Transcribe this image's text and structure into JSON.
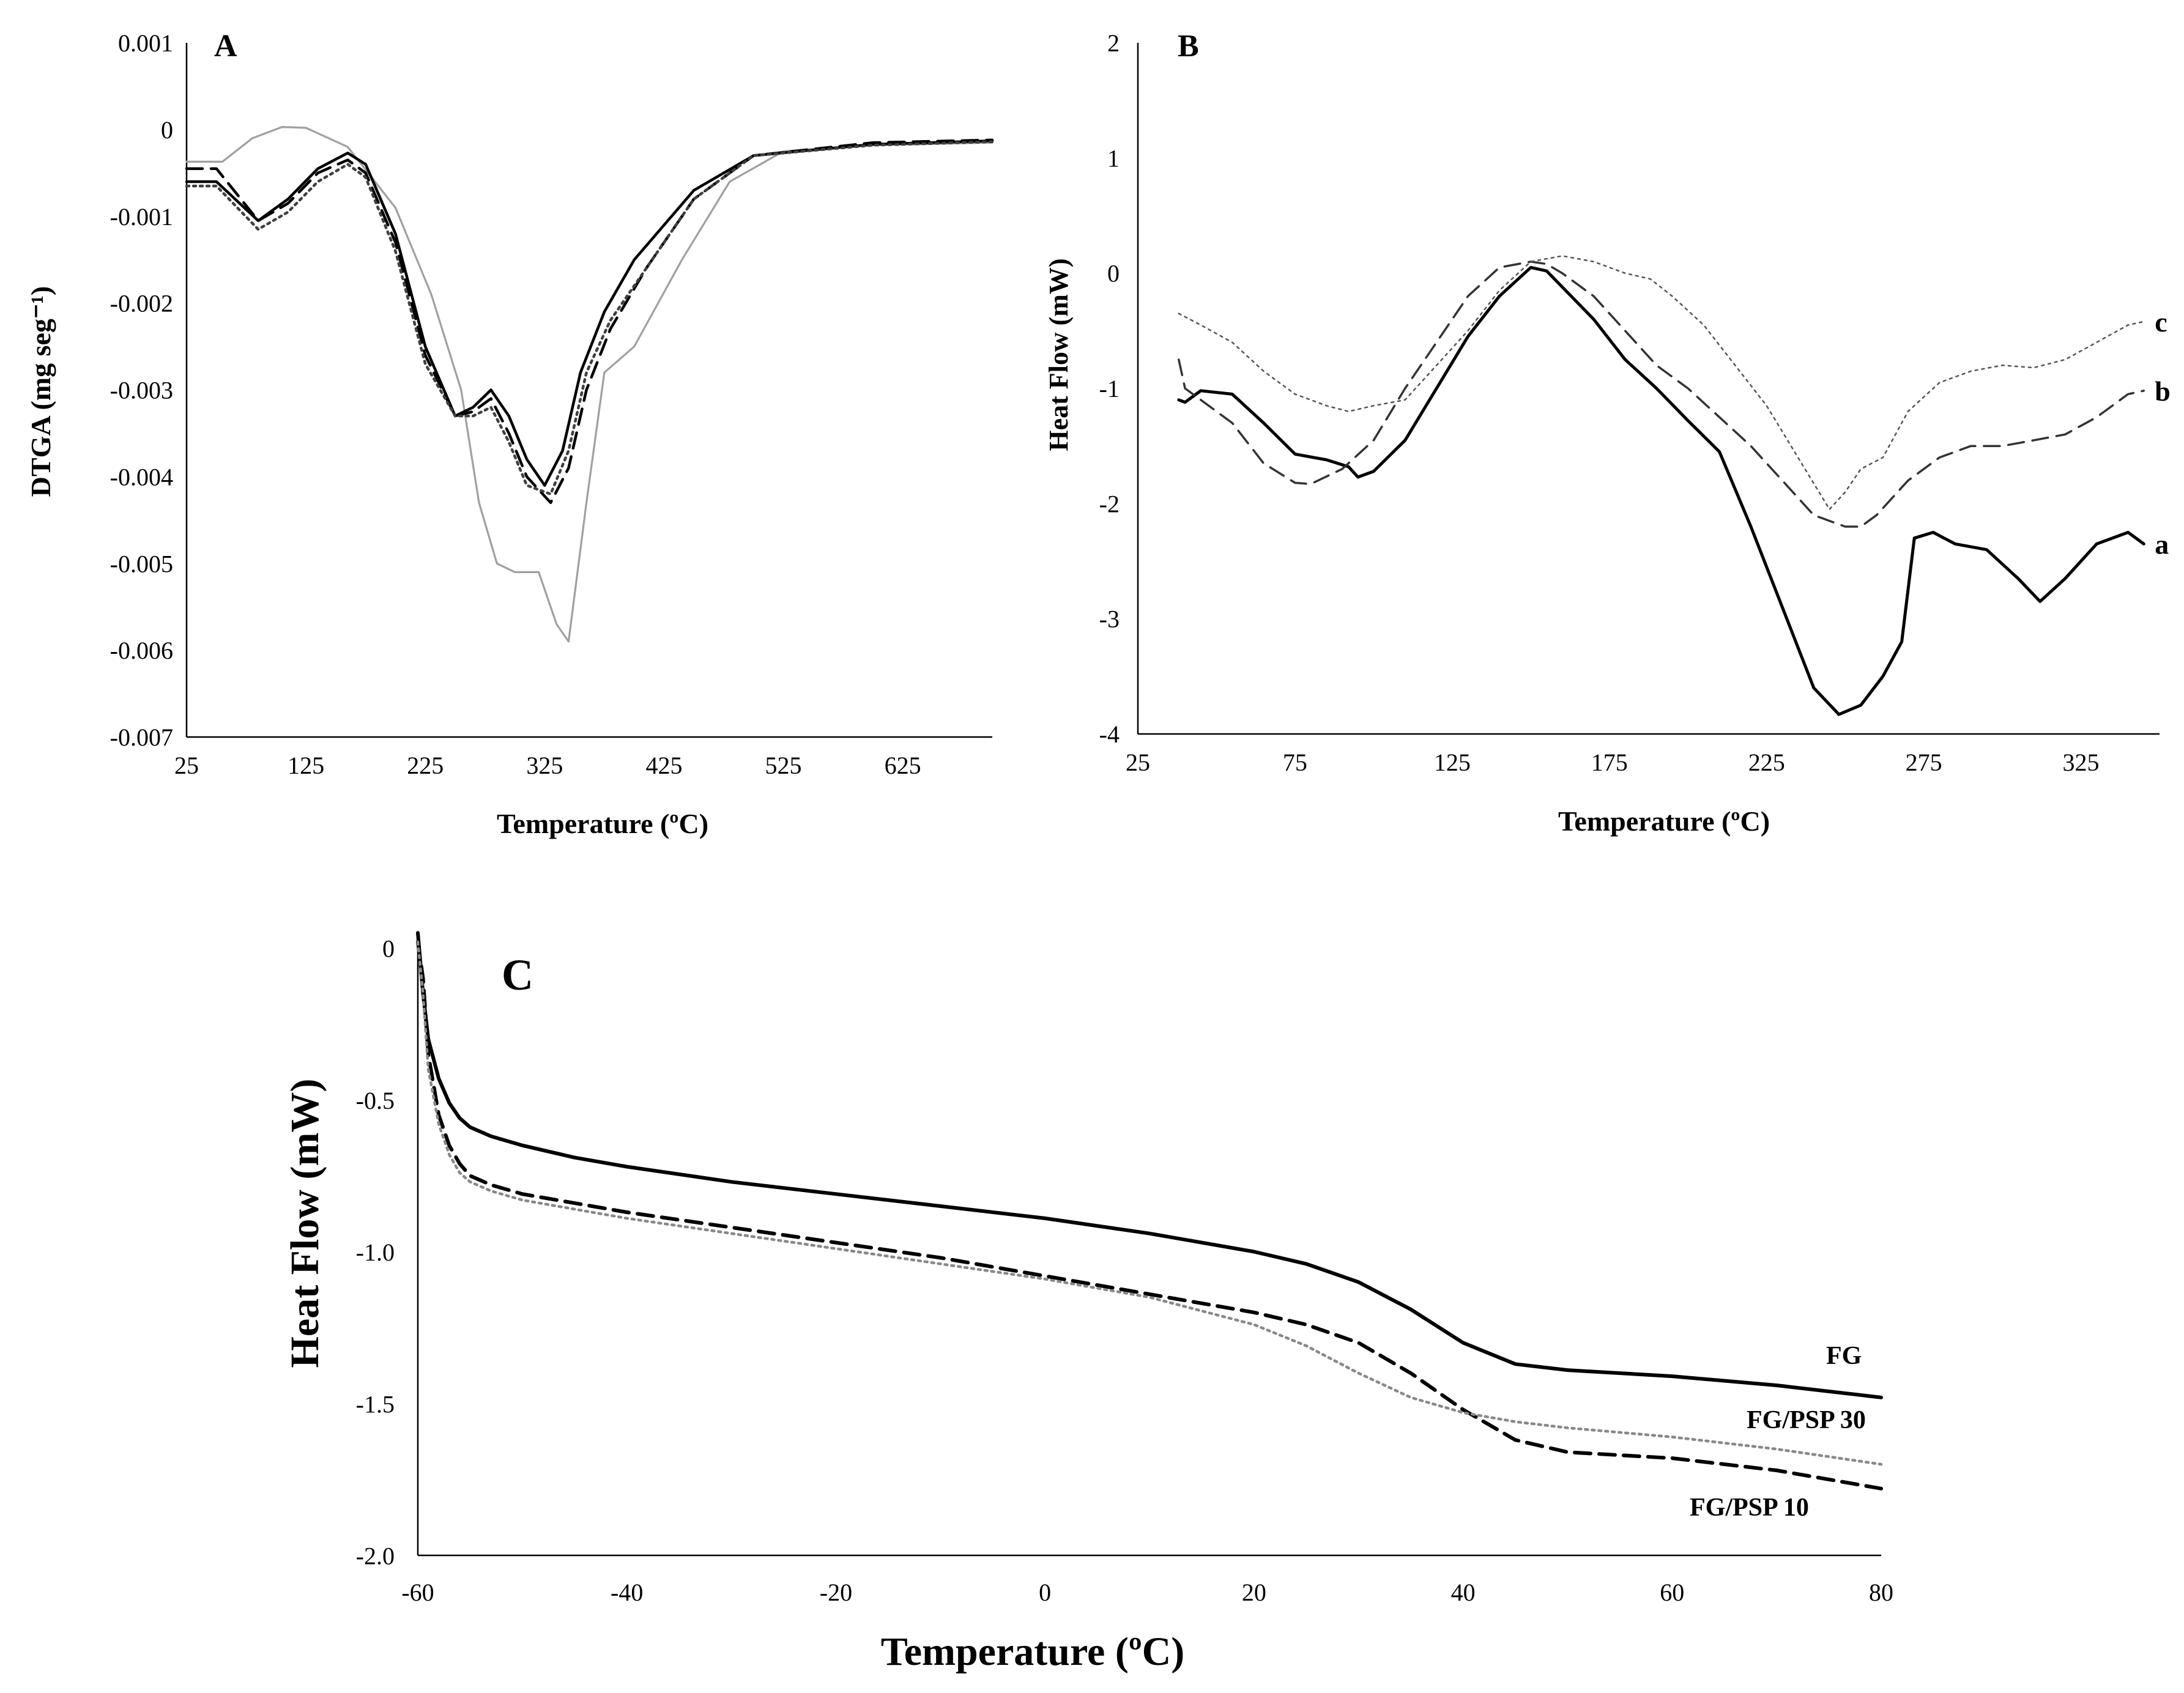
{
  "chart_data": [
    {
      "panel": "A",
      "type": "line",
      "xlabel": "Temperature (ºC)",
      "ylabel": "DTGA (mg seg⁻¹)",
      "xlim": [
        25,
        700
      ],
      "ylim": [
        -0.007,
        0.001
      ],
      "x_ticks": [
        25,
        125,
        225,
        325,
        425,
        525,
        625
      ],
      "x_tick_labels": [
        "25",
        "125",
        "225",
        "325",
        "425",
        "525",
        "625"
      ],
      "y_ticks": [
        0.001,
        0,
        -0.001,
        -0.002,
        -0.003,
        -0.004,
        -0.005,
        -0.006,
        -0.007
      ],
      "y_tick_labels": [
        "0.001",
        "0",
        "-0.001",
        "-0.002",
        "-0.003",
        "-0.004",
        "-0.005",
        "-0.006",
        "-0.007"
      ],
      "series": [
        {
          "name": "grey solid",
          "color": "#a0a0a0",
          "style": "solid",
          "x": [
            25,
            55,
            80,
            105,
            125,
            160,
            200,
            230,
            255,
            270,
            285,
            300,
            320,
            335,
            345,
            360,
            375,
            400,
            440,
            480,
            525,
            600,
            700
          ],
          "y": [
            -0.00037,
            -0.00037,
            -0.0001,
            3e-05,
            2e-05,
            -0.0002,
            -0.0009,
            -0.0019,
            -0.003,
            -0.0043,
            -0.005,
            -0.0051,
            -0.0051,
            -0.0057,
            -0.0059,
            -0.0043,
            -0.0028,
            -0.0025,
            -0.0015,
            -0.0006,
            -0.00025,
            -0.00018,
            -0.00015
          ]
        },
        {
          "name": "black solid",
          "color": "#000000",
          "style": "solid",
          "x": [
            25,
            50,
            85,
            110,
            135,
            160,
            175,
            200,
            225,
            250,
            265,
            280,
            295,
            310,
            325,
            340,
            355,
            375,
            400,
            450,
            500,
            600,
            700
          ],
          "y": [
            -0.0006,
            -0.0006,
            -0.00105,
            -0.0008,
            -0.00045,
            -0.00027,
            -0.0004,
            -0.0012,
            -0.0025,
            -0.0033,
            -0.0032,
            -0.003,
            -0.0033,
            -0.0038,
            -0.0041,
            -0.0037,
            -0.0028,
            -0.0021,
            -0.0015,
            -0.0007,
            -0.0003,
            -0.00017,
            -0.00013
          ]
        },
        {
          "name": "black dashed",
          "color": "#000000",
          "style": "dashed",
          "x": [
            25,
            50,
            85,
            110,
            135,
            160,
            175,
            200,
            225,
            250,
            265,
            280,
            295,
            310,
            330,
            345,
            360,
            380,
            410,
            450,
            500,
            600,
            700
          ],
          "y": [
            -0.00045,
            -0.00045,
            -0.00105,
            -0.00085,
            -0.0005,
            -0.00035,
            -0.0005,
            -0.0013,
            -0.0026,
            -0.0033,
            -0.00325,
            -0.0031,
            -0.0035,
            -0.004,
            -0.0043,
            -0.0039,
            -0.003,
            -0.0023,
            -0.0016,
            -0.0008,
            -0.0003,
            -0.00015,
            -0.00012
          ]
        },
        {
          "name": "black dotted",
          "color": "#404040",
          "style": "dotted",
          "x": [
            25,
            50,
            85,
            110,
            135,
            160,
            175,
            200,
            225,
            250,
            265,
            280,
            295,
            310,
            330,
            345,
            360,
            380,
            410,
            450,
            500,
            600,
            700
          ],
          "y": [
            -0.00065,
            -0.00065,
            -0.00115,
            -0.00095,
            -0.0006,
            -0.0004,
            -0.00055,
            -0.0014,
            -0.0027,
            -0.0033,
            -0.0033,
            -0.0032,
            -0.0036,
            -0.0041,
            -0.0042,
            -0.0037,
            -0.0028,
            -0.0022,
            -0.0016,
            -0.0008,
            -0.0003,
            -0.00018,
            -0.00014
          ]
        }
      ]
    },
    {
      "panel": "B",
      "type": "line",
      "xlabel": "Temperature (ºC)",
      "ylabel": "Heat Flow (mW)",
      "xlim": [
        25,
        350
      ],
      "ylim": [
        -4,
        2
      ],
      "x_ticks": [
        25,
        75,
        125,
        175,
        225,
        275,
        325
      ],
      "x_tick_labels": [
        "25",
        "75",
        "125",
        "175",
        "225",
        "275",
        "325"
      ],
      "y_ticks": [
        2,
        1,
        0,
        -1,
        -2,
        -3,
        -4
      ],
      "y_tick_labels": [
        "2",
        "1",
        "0",
        "-1",
        "-2",
        "-3",
        "-4"
      ],
      "series": [
        {
          "name": "a",
          "label": "a",
          "color": "#000000",
          "style": "solid",
          "x": [
            38,
            40,
            45,
            55,
            65,
            75,
            85,
            92,
            95,
            100,
            110,
            120,
            130,
            140,
            150,
            155,
            160,
            170,
            180,
            190,
            200,
            210,
            220,
            230,
            240,
            248,
            255,
            262,
            268,
            272,
            278,
            285,
            295,
            305,
            312,
            320,
            330,
            340,
            345
          ],
          "y": [
            -1.1,
            -1.12,
            -1.02,
            -1.05,
            -1.3,
            -1.57,
            -1.62,
            -1.68,
            -1.77,
            -1.72,
            -1.45,
            -1.0,
            -0.55,
            -0.2,
            0.05,
            0.02,
            -0.12,
            -0.4,
            -0.75,
            -1.0,
            -1.28,
            -1.55,
            -2.2,
            -2.9,
            -3.6,
            -3.83,
            -3.75,
            -3.5,
            -3.2,
            -2.3,
            -2.25,
            -2.35,
            -2.4,
            -2.65,
            -2.85,
            -2.65,
            -2.35,
            -2.25,
            -2.35
          ]
        },
        {
          "name": "b",
          "label": "b",
          "color": "#333333",
          "style": "dashed",
          "x": [
            38,
            40,
            45,
            55,
            65,
            75,
            80,
            90,
            100,
            110,
            120,
            130,
            140,
            150,
            155,
            160,
            170,
            180,
            190,
            200,
            210,
            220,
            230,
            240,
            250,
            255,
            260,
            270,
            280,
            290,
            300,
            310,
            320,
            330,
            340,
            345
          ],
          "y": [
            -0.75,
            -1.0,
            -1.1,
            -1.3,
            -1.65,
            -1.82,
            -1.83,
            -1.7,
            -1.45,
            -1.0,
            -0.6,
            -0.2,
            0.05,
            0.1,
            0.08,
            0.0,
            -0.2,
            -0.5,
            -0.8,
            -1.0,
            -1.25,
            -1.5,
            -1.8,
            -2.1,
            -2.2,
            -2.2,
            -2.1,
            -1.8,
            -1.6,
            -1.5,
            -1.5,
            -1.45,
            -1.4,
            -1.25,
            -1.05,
            -1.02
          ]
        },
        {
          "name": "c",
          "label": "c",
          "color": "#555555",
          "style": "dotted",
          "x": [
            38,
            45,
            55,
            65,
            75,
            85,
            92,
            100,
            110,
            120,
            130,
            140,
            150,
            160,
            170,
            180,
            188,
            195,
            205,
            215,
            225,
            235,
            245,
            250,
            255,
            262,
            270,
            280,
            290,
            300,
            310,
            320,
            330,
            340,
            345
          ],
          "y": [
            -0.35,
            -0.45,
            -0.6,
            -0.85,
            -1.05,
            -1.15,
            -1.2,
            -1.15,
            -1.1,
            -0.8,
            -0.5,
            -0.15,
            0.1,
            0.15,
            0.1,
            0.0,
            -0.05,
            -0.2,
            -0.45,
            -0.8,
            -1.15,
            -1.6,
            -2.05,
            -1.9,
            -1.7,
            -1.6,
            -1.2,
            -0.95,
            -0.85,
            -0.8,
            -0.82,
            -0.75,
            -0.6,
            -0.45,
            -0.42
          ]
        }
      ]
    },
    {
      "panel": "C",
      "type": "line",
      "xlabel": "Temperature (ºC)",
      "ylabel": "Heat Flow (mW)",
      "xlim": [
        -60,
        80
      ],
      "ylim": [
        -2.0,
        0
      ],
      "x_ticks": [
        -60,
        -40,
        -20,
        0,
        20,
        40,
        60,
        80
      ],
      "x_tick_labels": [
        "-60",
        "-40",
        "-20",
        "0",
        "20",
        "40",
        "60",
        "80"
      ],
      "y_ticks": [
        0,
        -0.5,
        -1.0,
        -1.5,
        -2.0
      ],
      "y_tick_labels": [
        "0",
        "-0.5",
        "-1.0",
        "-1.5",
        "-2.0"
      ],
      "series": [
        {
          "name": "FG",
          "label": "FG",
          "color": "#000000",
          "style": "solid",
          "x": [
            -60,
            -59.5,
            -59,
            -58,
            -57,
            -56,
            -55,
            -53,
            -50,
            -45,
            -40,
            -30,
            -20,
            -10,
            0,
            10,
            20,
            25,
            30,
            35,
            40,
            45,
            50,
            60,
            70,
            80
          ],
          "y": [
            0.05,
            -0.15,
            -0.3,
            -0.43,
            -0.51,
            -0.56,
            -0.59,
            -0.62,
            -0.65,
            -0.69,
            -0.72,
            -0.77,
            -0.81,
            -0.85,
            -0.89,
            -0.94,
            -1.0,
            -1.04,
            -1.1,
            -1.19,
            -1.3,
            -1.37,
            -1.39,
            -1.41,
            -1.44,
            -1.48
          ]
        },
        {
          "name": "FG/PSP 10",
          "label": "FG/PSP 10",
          "color": "#000000",
          "style": "dashed",
          "x": [
            -60,
            -59.5,
            -59,
            -58,
            -57,
            -56,
            -55,
            -53,
            -50,
            -45,
            -40,
            -30,
            -20,
            -10,
            0,
            10,
            20,
            25,
            30,
            35,
            40,
            45,
            50,
            60,
            70,
            80
          ],
          "y": [
            0.02,
            -0.1,
            -0.35,
            -0.55,
            -0.65,
            -0.71,
            -0.75,
            -0.78,
            -0.81,
            -0.84,
            -0.87,
            -0.92,
            -0.97,
            -1.02,
            -1.08,
            -1.14,
            -1.2,
            -1.24,
            -1.3,
            -1.4,
            -1.52,
            -1.62,
            -1.66,
            -1.68,
            -1.72,
            -1.78
          ]
        },
        {
          "name": "FG/PSP 30",
          "label": "FG/PSP 30",
          "color": "#888888",
          "style": "dotted",
          "x": [
            -60,
            -59.5,
            -59,
            -58,
            -57,
            -56,
            -55,
            -53,
            -50,
            -45,
            -40,
            -30,
            -20,
            -10,
            0,
            10,
            20,
            25,
            30,
            35,
            40,
            45,
            50,
            60,
            70,
            80
          ],
          "y": [
            0.02,
            -0.15,
            -0.4,
            -0.58,
            -0.68,
            -0.74,
            -0.77,
            -0.8,
            -0.83,
            -0.86,
            -0.89,
            -0.94,
            -0.99,
            -1.04,
            -1.09,
            -1.15,
            -1.24,
            -1.31,
            -1.4,
            -1.48,
            -1.53,
            -1.56,
            -1.58,
            -1.61,
            -1.65,
            -1.7
          ]
        }
      ]
    }
  ]
}
